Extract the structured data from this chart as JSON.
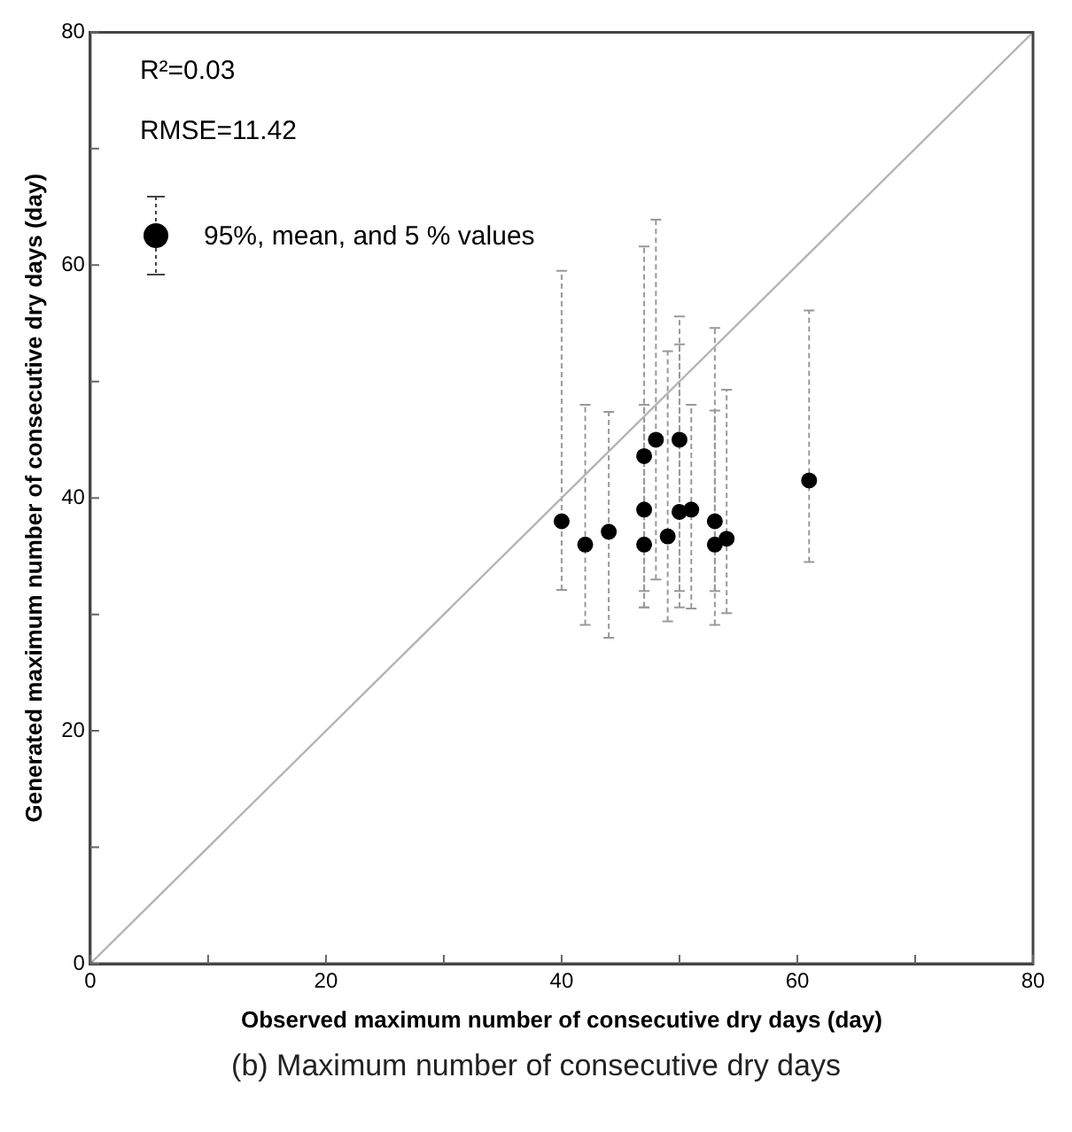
{
  "chart_data": {
    "type": "scatter",
    "title": "(b) Maximum number of consecutive dry days",
    "xlabel": "Observed maximum number of consecutive dry days (day)",
    "ylabel": "Generated maximum number of consecutive dry days (day)",
    "annotations": [
      "R²=0.03",
      "RMSE=11.42"
    ],
    "xlim": [
      0,
      80
    ],
    "ylim": [
      0,
      80
    ],
    "xticks": [
      0,
      {
        "value": 10,
        "label": null
      },
      20,
      {
        "value": 30,
        "label": null
      },
      40,
      {
        "value": 50,
        "label": null
      },
      60,
      {
        "value": 70,
        "label": null
      },
      80
    ],
    "yticks": [
      0,
      {
        "value": 10,
        "label": null
      },
      20,
      {
        "value": 30,
        "label": null
      },
      40,
      {
        "value": 50,
        "label": null
      },
      60,
      {
        "value": 70,
        "label": null
      },
      80
    ],
    "grid": false,
    "legend": "top left",
    "marker": "circle",
    "series": [
      {
        "type": "line",
        "color": "#b4b4b4",
        "x": [
          0,
          80
        ],
        "values": [
          0,
          80
        ],
        "marker": "none"
      },
      {
        "name": "95%, mean, and 5 % values",
        "color": "#000000",
        "x": [
          40,
          42,
          44,
          47,
          47,
          47,
          48,
          49,
          50,
          50,
          51,
          53,
          53,
          54,
          61
        ],
        "values": [
          38,
          36,
          37.1,
          43.6,
          39,
          36,
          45,
          36.7,
          45,
          38.8,
          39,
          38,
          36,
          36.5,
          41.5
        ],
        "errors": [
          [
            32.1,
            59.5
          ],
          [
            29.1,
            48
          ],
          [
            28,
            47.4
          ],
          [
            30.6,
            61.6
          ],
          [
            32,
            48
          ],
          [
            30.6,
            48
          ],
          [
            33,
            63.9
          ],
          [
            29.4,
            52.6
          ],
          [
            32,
            55.6
          ],
          [
            30.6,
            53.2
          ],
          [
            30.5,
            48
          ],
          [
            32,
            54.6
          ],
          [
            29.1,
            47.5
          ],
          [
            30.1,
            49.3
          ],
          [
            34.5,
            56.1
          ]
        ]
      }
    ]
  }
}
